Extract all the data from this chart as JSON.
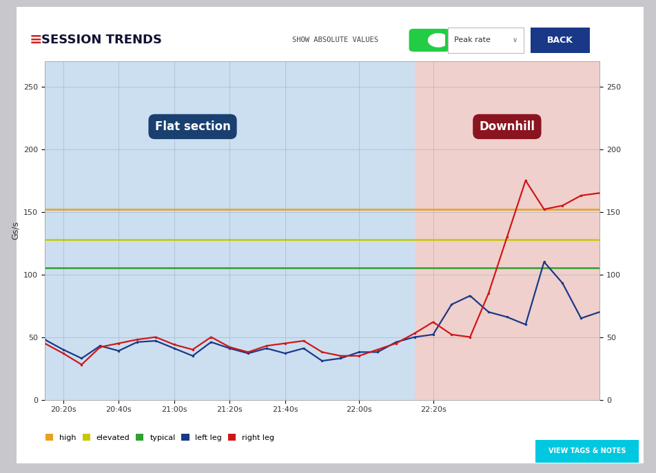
{
  "title": "SESSION TRENDS",
  "ylabel": "Gs/s",
  "ylim": [
    0,
    270
  ],
  "yticks": [
    0,
    50,
    100,
    150,
    200,
    250
  ],
  "outer_bg": "#c8c8cc",
  "card_bg": "#ffffff",
  "plot_bg_flat": "#ccdff0",
  "plot_bg_downhill": "#f0d0cc",
  "hline_high": 152,
  "hline_high_color": "#e8a020",
  "hline_elevated": 128,
  "hline_elevated_color": "#c8c800",
  "hline_typical": 105,
  "hline_typical_color": "#30a030",
  "flat_section_label": "Flat section",
  "flat_section_label_bg": "#1a4070",
  "downhill_label": "Downhill",
  "downhill_label_bg": "#8a1520",
  "split_index": 20,
  "x_tick_indices": [
    1,
    4,
    7,
    10,
    13,
    17,
    21
  ],
  "x_labels": [
    "20:20s",
    "20:40s",
    "21:00s",
    "21:20s",
    "21:40s",
    "22:00s",
    "22:20s"
  ],
  "left_leg_color": "#1a3888",
  "right_leg_color": "#cc1818",
  "left_leg": [
    48,
    40,
    33,
    43,
    39,
    46,
    47,
    41,
    35,
    46,
    41,
    37,
    41,
    37,
    41,
    31,
    33,
    38,
    38,
    46,
    50,
    52,
    76,
    83,
    70,
    66,
    60,
    110,
    93,
    65,
    70
  ],
  "right_leg": [
    45,
    37,
    28,
    42,
    45,
    48,
    50,
    44,
    40,
    50,
    42,
    38,
    43,
    45,
    47,
    38,
    35,
    35,
    40,
    45,
    53,
    62,
    52,
    50,
    85,
    130,
    175,
    152,
    155,
    163,
    165
  ],
  "legend_items": [
    {
      "label": "high",
      "color": "#e8a020"
    },
    {
      "label": "elevated",
      "color": "#c8c800"
    },
    {
      "label": "typical",
      "color": "#30a030"
    },
    {
      "label": "left leg",
      "color": "#1a3888"
    },
    {
      "label": "right leg",
      "color": "#cc1818"
    }
  ]
}
